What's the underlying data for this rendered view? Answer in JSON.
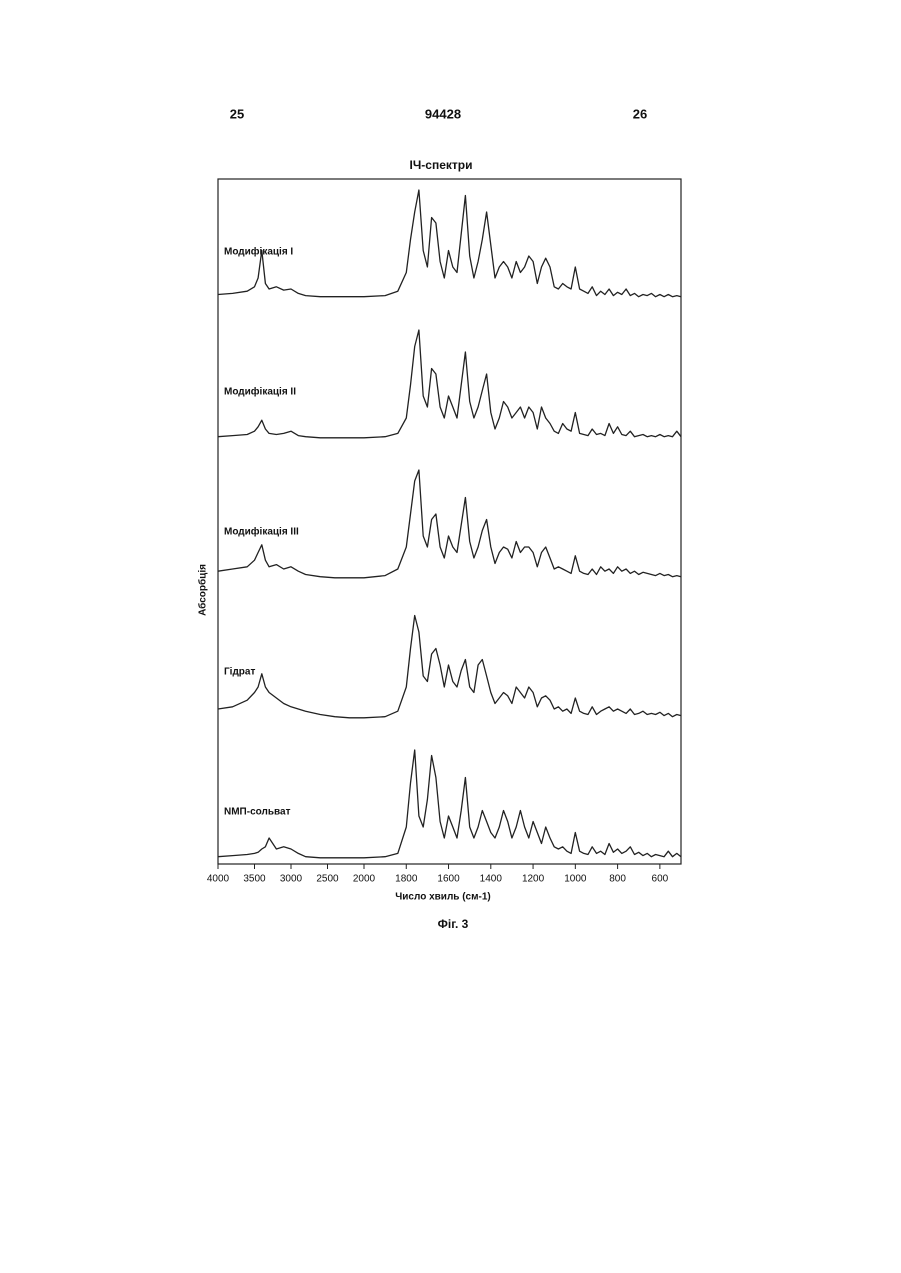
{
  "header": {
    "left": "25",
    "center": "94428",
    "right": "26"
  },
  "caption": "Фіг. 3",
  "chart_data": {
    "type": "line",
    "title": "ІЧ-спектри",
    "x_label": "Число хвиль (см-1)",
    "y_label": "Абсорбція",
    "xlim": [
      4000,
      500
    ],
    "xbreak": 2000,
    "xticks": [
      4000,
      3500,
      3000,
      2500,
      2000,
      1800,
      1600,
      1400,
      1200,
      1000,
      800,
      600
    ],
    "ylim": [
      0,
      1
    ],
    "grid": false,
    "color": "#222222",
    "x": [
      4000,
      3800,
      3600,
      3500,
      3450,
      3400,
      3350,
      3300,
      3200,
      3100,
      3000,
      2900,
      2800,
      2600,
      2400,
      2200,
      2000,
      1900,
      1840,
      1800,
      1780,
      1760,
      1740,
      1720,
      1700,
      1680,
      1660,
      1640,
      1620,
      1600,
      1580,
      1560,
      1540,
      1520,
      1500,
      1480,
      1460,
      1440,
      1420,
      1400,
      1380,
      1360,
      1340,
      1320,
      1300,
      1280,
      1260,
      1240,
      1220,
      1200,
      1180,
      1160,
      1140,
      1120,
      1100,
      1080,
      1060,
      1040,
      1020,
      1000,
      980,
      960,
      940,
      920,
      900,
      880,
      860,
      840,
      820,
      800,
      780,
      760,
      740,
      720,
      700,
      680,
      660,
      640,
      620,
      600,
      580,
      560,
      540,
      520,
      500
    ],
    "series": [
      {
        "name": "Модифікація I",
        "values": [
          0.05,
          0.06,
          0.08,
          0.12,
          0.2,
          0.45,
          0.15,
          0.1,
          0.12,
          0.09,
          0.1,
          0.06,
          0.04,
          0.03,
          0.03,
          0.03,
          0.03,
          0.04,
          0.08,
          0.25,
          0.55,
          0.8,
          1,
          0.45,
          0.3,
          0.75,
          0.7,
          0.35,
          0.2,
          0.45,
          0.3,
          0.25,
          0.6,
          0.95,
          0.4,
          0.2,
          0.35,
          0.55,
          0.8,
          0.5,
          0.2,
          0.3,
          0.35,
          0.3,
          0.2,
          0.35,
          0.25,
          0.3,
          0.4,
          0.35,
          0.15,
          0.3,
          0.38,
          0.3,
          0.12,
          0.1,
          0.15,
          0.12,
          0.1,
          0.3,
          0.1,
          0.08,
          0.06,
          0.12,
          0.04,
          0.08,
          0.05,
          0.1,
          0.04,
          0.07,
          0.05,
          0.1,
          0.04,
          0.06,
          0.03,
          0.05,
          0.04,
          0.06,
          0.03,
          0.05,
          0.03,
          0.05,
          0.03,
          0.04,
          0.03
        ]
      },
      {
        "name": "Модифікація II",
        "values": [
          0.03,
          0.04,
          0.05,
          0.08,
          0.12,
          0.18,
          0.1,
          0.06,
          0.05,
          0.06,
          0.08,
          0.04,
          0.03,
          0.02,
          0.02,
          0.02,
          0.02,
          0.03,
          0.06,
          0.2,
          0.5,
          0.85,
          1,
          0.4,
          0.3,
          0.65,
          0.6,
          0.3,
          0.2,
          0.4,
          0.3,
          0.2,
          0.5,
          0.8,
          0.35,
          0.2,
          0.3,
          0.45,
          0.6,
          0.25,
          0.1,
          0.2,
          0.35,
          0.3,
          0.2,
          0.25,
          0.3,
          0.2,
          0.3,
          0.25,
          0.1,
          0.3,
          0.2,
          0.15,
          0.08,
          0.06,
          0.15,
          0.1,
          0.08,
          0.25,
          0.06,
          0.05,
          0.04,
          0.1,
          0.05,
          0.06,
          0.04,
          0.15,
          0.06,
          0.12,
          0.05,
          0.04,
          0.08,
          0.03,
          0.04,
          0.05,
          0.03,
          0.04,
          0.03,
          0.05,
          0.03,
          0.04,
          0.03,
          0.08,
          0.03
        ]
      },
      {
        "name": "Модифікація III",
        "values": [
          0.08,
          0.1,
          0.12,
          0.18,
          0.25,
          0.32,
          0.18,
          0.12,
          0.14,
          0.1,
          0.12,
          0.08,
          0.05,
          0.03,
          0.02,
          0.02,
          0.02,
          0.04,
          0.1,
          0.3,
          0.6,
          0.9,
          1,
          0.4,
          0.3,
          0.55,
          0.6,
          0.3,
          0.2,
          0.4,
          0.3,
          0.25,
          0.5,
          0.75,
          0.35,
          0.2,
          0.3,
          0.45,
          0.55,
          0.3,
          0.15,
          0.25,
          0.3,
          0.28,
          0.2,
          0.35,
          0.25,
          0.3,
          0.3,
          0.25,
          0.12,
          0.25,
          0.3,
          0.2,
          0.1,
          0.12,
          0.1,
          0.08,
          0.06,
          0.22,
          0.08,
          0.06,
          0.05,
          0.1,
          0.05,
          0.12,
          0.08,
          0.1,
          0.06,
          0.12,
          0.08,
          0.1,
          0.06,
          0.08,
          0.05,
          0.07,
          0.06,
          0.05,
          0.04,
          0.06,
          0.04,
          0.05,
          0.03,
          0.04,
          0.03
        ]
      },
      {
        "name": "Гідрат",
        "values": [
          0.1,
          0.12,
          0.18,
          0.25,
          0.3,
          0.42,
          0.3,
          0.25,
          0.2,
          0.15,
          0.12,
          0.1,
          0.08,
          0.05,
          0.03,
          0.02,
          0.02,
          0.03,
          0.08,
          0.3,
          0.65,
          0.95,
          0.8,
          0.4,
          0.35,
          0.6,
          0.65,
          0.5,
          0.3,
          0.5,
          0.35,
          0.3,
          0.45,
          0.55,
          0.3,
          0.25,
          0.5,
          0.55,
          0.4,
          0.25,
          0.15,
          0.2,
          0.25,
          0.22,
          0.15,
          0.3,
          0.25,
          0.2,
          0.3,
          0.25,
          0.12,
          0.2,
          0.22,
          0.18,
          0.1,
          0.12,
          0.08,
          0.1,
          0.06,
          0.2,
          0.08,
          0.06,
          0.05,
          0.12,
          0.05,
          0.08,
          0.1,
          0.12,
          0.08,
          0.1,
          0.08,
          0.06,
          0.1,
          0.05,
          0.06,
          0.08,
          0.05,
          0.06,
          0.05,
          0.07,
          0.04,
          0.06,
          0.03,
          0.05,
          0.04
        ]
      },
      {
        "name": "NMП-сольват",
        "values": [
          0.03,
          0.04,
          0.05,
          0.06,
          0.07,
          0.1,
          0.12,
          0.2,
          0.1,
          0.12,
          0.1,
          0.06,
          0.03,
          0.02,
          0.02,
          0.02,
          0.02,
          0.03,
          0.06,
          0.3,
          0.7,
          1,
          0.4,
          0.3,
          0.55,
          0.95,
          0.75,
          0.35,
          0.2,
          0.4,
          0.3,
          0.2,
          0.45,
          0.75,
          0.3,
          0.2,
          0.3,
          0.45,
          0.35,
          0.25,
          0.2,
          0.3,
          0.45,
          0.35,
          0.2,
          0.3,
          0.45,
          0.3,
          0.2,
          0.35,
          0.25,
          0.15,
          0.3,
          0.2,
          0.12,
          0.1,
          0.12,
          0.08,
          0.06,
          0.25,
          0.08,
          0.06,
          0.05,
          0.12,
          0.06,
          0.08,
          0.05,
          0.15,
          0.07,
          0.1,
          0.06,
          0.08,
          0.12,
          0.05,
          0.07,
          0.04,
          0.06,
          0.03,
          0.05,
          0.04,
          0.03,
          0.08,
          0.03,
          0.06,
          0.03
        ]
      }
    ]
  }
}
